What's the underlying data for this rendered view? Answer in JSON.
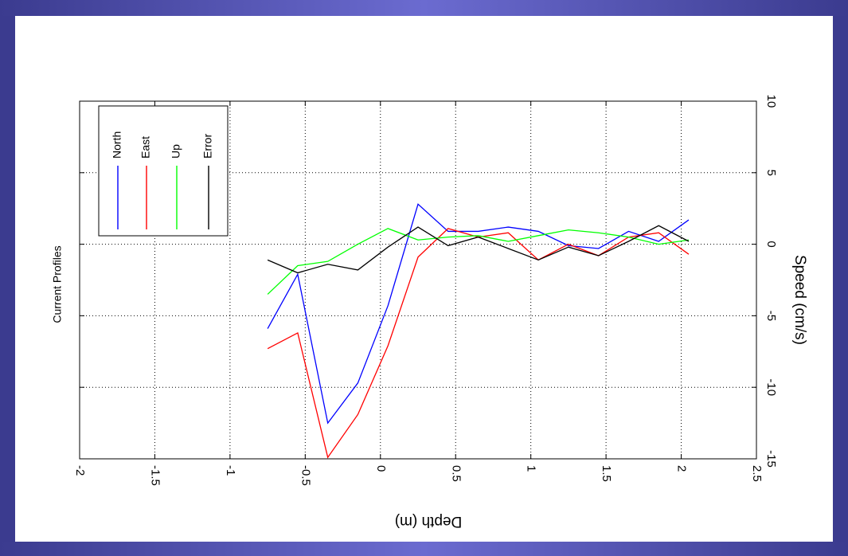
{
  "chart_data": {
    "type": "line",
    "title": "Current Profiles",
    "xlabel": "Depth (m)",
    "ylabel": "Speed (cm/s)",
    "xlim": [
      -2,
      2.5
    ],
    "ylim": [
      -15,
      10
    ],
    "xticks": [
      "-2",
      "-1.5",
      "-1",
      "-0.5",
      "0",
      "0.5",
      "1",
      "1.5",
      "2",
      "2.5"
    ],
    "yticks": [
      "-15",
      "-10",
      "-5",
      "0",
      "5",
      "10"
    ],
    "grid": true,
    "legend_position": "top-left",
    "x": [
      -0.75,
      -0.55,
      -0.35,
      -0.15,
      0.05,
      0.25,
      0.45,
      0.65,
      0.85,
      1.05,
      1.25,
      1.45,
      1.65,
      1.85,
      2.05
    ],
    "series": [
      {
        "name": "North",
        "color": "#0000ff",
        "values": [
          -5.9,
          -2.1,
          -12.5,
          -9.7,
          -4.3,
          2.8,
          0.9,
          0.9,
          1.2,
          0.9,
          -0.1,
          -0.3,
          0.9,
          0.2,
          1.7
        ]
      },
      {
        "name": "East",
        "color": "#ff0000",
        "values": [
          -7.3,
          -6.2,
          -14.9,
          -11.9,
          -7.1,
          -0.9,
          1.1,
          0.5,
          0.8,
          -1.1,
          0.0,
          -0.8,
          0.5,
          0.8,
          -0.7
        ]
      },
      {
        "name": "Up",
        "color": "#00ff00",
        "values": [
          -3.5,
          -1.5,
          -1.2,
          0.0,
          1.1,
          0.3,
          0.5,
          0.6,
          0.2,
          0.6,
          1.0,
          0.8,
          0.5,
          0.0,
          0.3
        ]
      },
      {
        "name": "Error",
        "color": "#000000",
        "values": [
          -1.1,
          -2.0,
          -1.4,
          -1.8,
          -0.2,
          1.2,
          -0.1,
          0.5,
          -0.3,
          -1.1,
          -0.2,
          -0.8,
          0.2,
          1.3,
          0.2
        ]
      }
    ]
  }
}
